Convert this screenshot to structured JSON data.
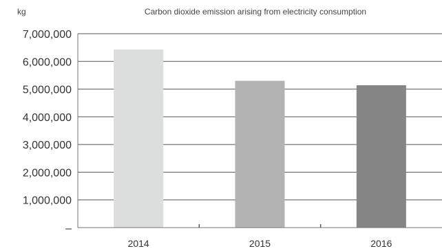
{
  "chart_data": {
    "type": "bar",
    "title": "Carbon dioxide emission arising from electricity consumption",
    "ylabel": "kg",
    "xlabel": "",
    "categories": [
      "2014",
      "2015",
      "2016"
    ],
    "values": [
      6430000,
      5300000,
      5140000
    ],
    "colors": [
      "#dcdedd",
      "#b3b3b3",
      "#858585"
    ],
    "ylim": [
      0,
      7000000
    ],
    "yticks": [
      0,
      1000000,
      2000000,
      3000000,
      4000000,
      5000000,
      6000000,
      7000000
    ],
    "ytick_labels": [
      "–",
      "1,000,000",
      "2,000,000",
      "3,000,000",
      "4,000,000",
      "5,000,000",
      "6,000,000",
      "7,000,000"
    ],
    "grid": true,
    "legend": "none"
  }
}
